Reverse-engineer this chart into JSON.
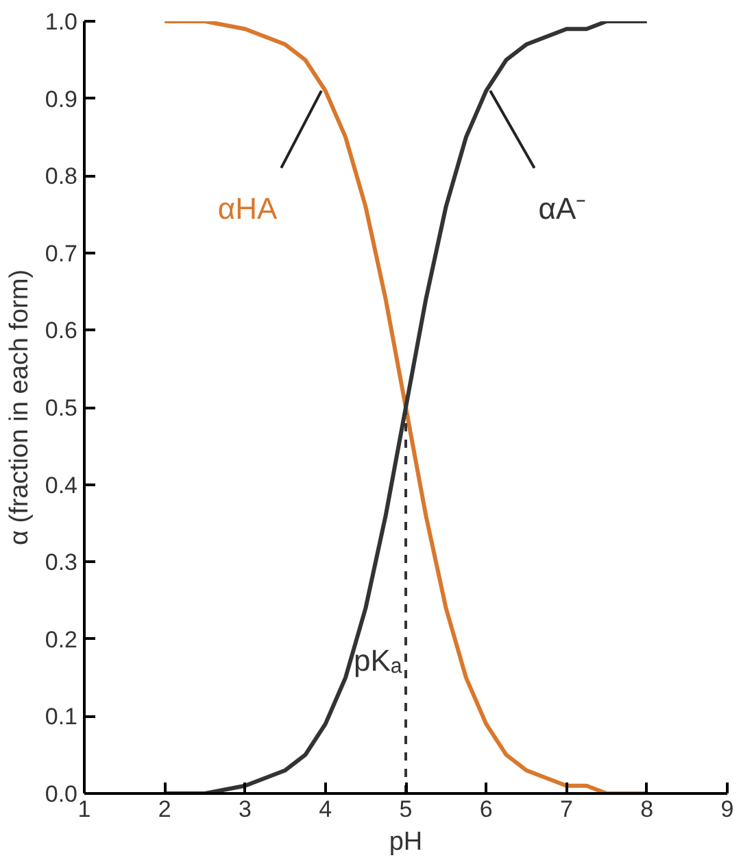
{
  "chart_data": {
    "type": "line",
    "xlabel": "pH",
    "ylabel": "α (fraction in each form)",
    "x": [
      2,
      2.5,
      3,
      3.25,
      3.5,
      3.75,
      4,
      4.25,
      4.5,
      4.75,
      5,
      5.25,
      5.5,
      5.75,
      6,
      6.25,
      6.5,
      6.75,
      7,
      7.25,
      7.5,
      8
    ],
    "series": [
      {
        "name": "αHA",
        "color": "#d9782d",
        "values": [
          1.0,
          1.0,
          0.99,
          0.98,
          0.97,
          0.95,
          0.91,
          0.85,
          0.76,
          0.64,
          0.5,
          0.36,
          0.24,
          0.15,
          0.09,
          0.05,
          0.03,
          0.02,
          0.01,
          0.01,
          0.0,
          0.0
        ]
      },
      {
        "name": "αA⁻",
        "color": "#333333",
        "values": [
          0.0,
          0.0,
          0.01,
          0.02,
          0.03,
          0.05,
          0.09,
          0.15,
          0.24,
          0.36,
          0.5,
          0.64,
          0.76,
          0.85,
          0.91,
          0.95,
          0.97,
          0.98,
          0.99,
          0.99,
          1.0,
          1.0
        ]
      }
    ],
    "xlim": [
      1,
      9
    ],
    "xticks": [
      1,
      2,
      3,
      4,
      5,
      6,
      7,
      8,
      9
    ],
    "ylim": [
      0,
      1
    ],
    "yticks": [
      {
        "value": 0,
        "label": "0.0"
      },
      0.1,
      0.2,
      0.3,
      0.4,
      0.5,
      0.6,
      0.7,
      0.8,
      0.9,
      {
        "value": 1,
        "label": "1.0"
      }
    ],
    "ref_lines": [
      {
        "axis": "x",
        "value": 5,
        "label": "pKₐ",
        "line_style": "dashed",
        "color": "#333333"
      }
    ],
    "grid": false,
    "marker": "none",
    "line_style": "solid"
  }
}
